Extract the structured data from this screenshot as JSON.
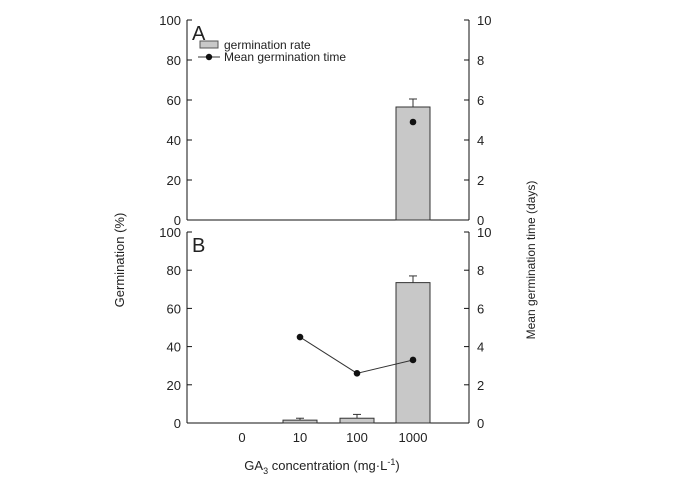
{
  "chart_data": {
    "type": "bar",
    "categories": [
      "0",
      "10",
      "100",
      "1000"
    ],
    "xlabel_main": "GA",
    "xlabel_sub": "3",
    "xlabel_rest": " concentration (mg·L",
    "xlabel_sup": "-1",
    "xlabel_close": ")",
    "ylabel_left": "Germination (%)",
    "ylabel_right": "Mean germination time (days)",
    "ylim_left": [
      0,
      100
    ],
    "ylim_right": [
      0,
      10
    ],
    "yticks_left": [
      "0",
      "20",
      "40",
      "60",
      "80",
      "100"
    ],
    "yticks_right": [
      "0",
      "2",
      "4",
      "6",
      "8",
      "10"
    ],
    "legend": {
      "bar_label": "germination rate",
      "line_label": "Mean germination time"
    },
    "panels": [
      {
        "letter": "A",
        "bars": [
          null,
          null,
          null,
          56.5
        ],
        "bar_errors": [
          null,
          null,
          null,
          4
        ],
        "line_values": [
          null,
          null,
          null,
          4.9
        ]
      },
      {
        "letter": "B",
        "bars": [
          null,
          1.5,
          2.5,
          73.5
        ],
        "bar_errors": [
          null,
          1,
          2,
          3.5
        ],
        "line_values": [
          null,
          4.5,
          2.6,
          3.3
        ]
      }
    ]
  }
}
